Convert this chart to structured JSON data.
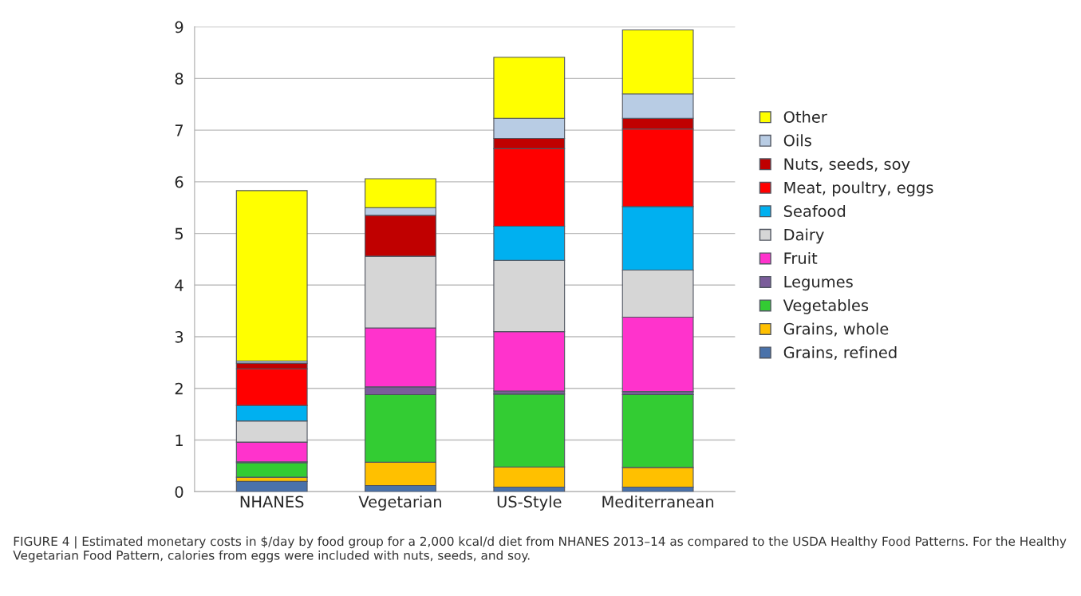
{
  "chart_data": {
    "type": "bar",
    "stacked": true,
    "categories": [
      "NHANES",
      "Vegetarian",
      "US-Style",
      "Mediterranean"
    ],
    "series": [
      {
        "name": "Grains, refined",
        "color": "#4a72aa",
        "values": [
          0.2,
          0.12,
          0.09,
          0.09
        ]
      },
      {
        "name": "Grains, whole",
        "color": "#ffc000",
        "values": [
          0.08,
          0.45,
          0.39,
          0.38
        ]
      },
      {
        "name": "Vegetables",
        "color": "#33cc33",
        "values": [
          0.28,
          1.31,
          1.41,
          1.41
        ]
      },
      {
        "name": "Legumes",
        "color": "#7a5c9a",
        "values": [
          0.02,
          0.15,
          0.06,
          0.06
        ]
      },
      {
        "name": "Fruit",
        "color": "#ff33cc",
        "values": [
          0.38,
          1.14,
          1.15,
          1.44
        ]
      },
      {
        "name": "Dairy",
        "color": "#d6d6d6",
        "values": [
          0.41,
          1.39,
          1.38,
          0.91
        ]
      },
      {
        "name": "Seafood",
        "color": "#00b0f0",
        "values": [
          0.3,
          0,
          0.66,
          1.23
        ]
      },
      {
        "name": "Meat, poultry, eggs",
        "color": "#ff0000",
        "values": [
          0.71,
          0,
          1.5,
          1.5
        ]
      },
      {
        "name": "Nuts, seeds, soy",
        "color": "#c00000",
        "values": [
          0.11,
          0.79,
          0.2,
          0.21
        ]
      },
      {
        "name": "Oils",
        "color": "#b8cce4",
        "values": [
          0.04,
          0.15,
          0.39,
          0.47
        ]
      },
      {
        "name": "Other",
        "color": "#ffff00",
        "values": [
          3.3,
          0.56,
          1.18,
          1.24
        ]
      }
    ],
    "ylim": [
      0,
      9
    ],
    "yticks": [
      0,
      1,
      2,
      3,
      4,
      5,
      6,
      7,
      8,
      9
    ],
    "grid": "y",
    "legend": "right",
    "annotations": [
      "FIGURE 4 | Estimated monetary costs in $/day by food group for a 2,000 kcal/d diet from NHANES 2013–14 as compared to the USDA Healthy Food Patterns. For the Healthy Vegetarian Food Pattern, calories from eggs were included with nuts, seeds, and soy."
    ]
  }
}
